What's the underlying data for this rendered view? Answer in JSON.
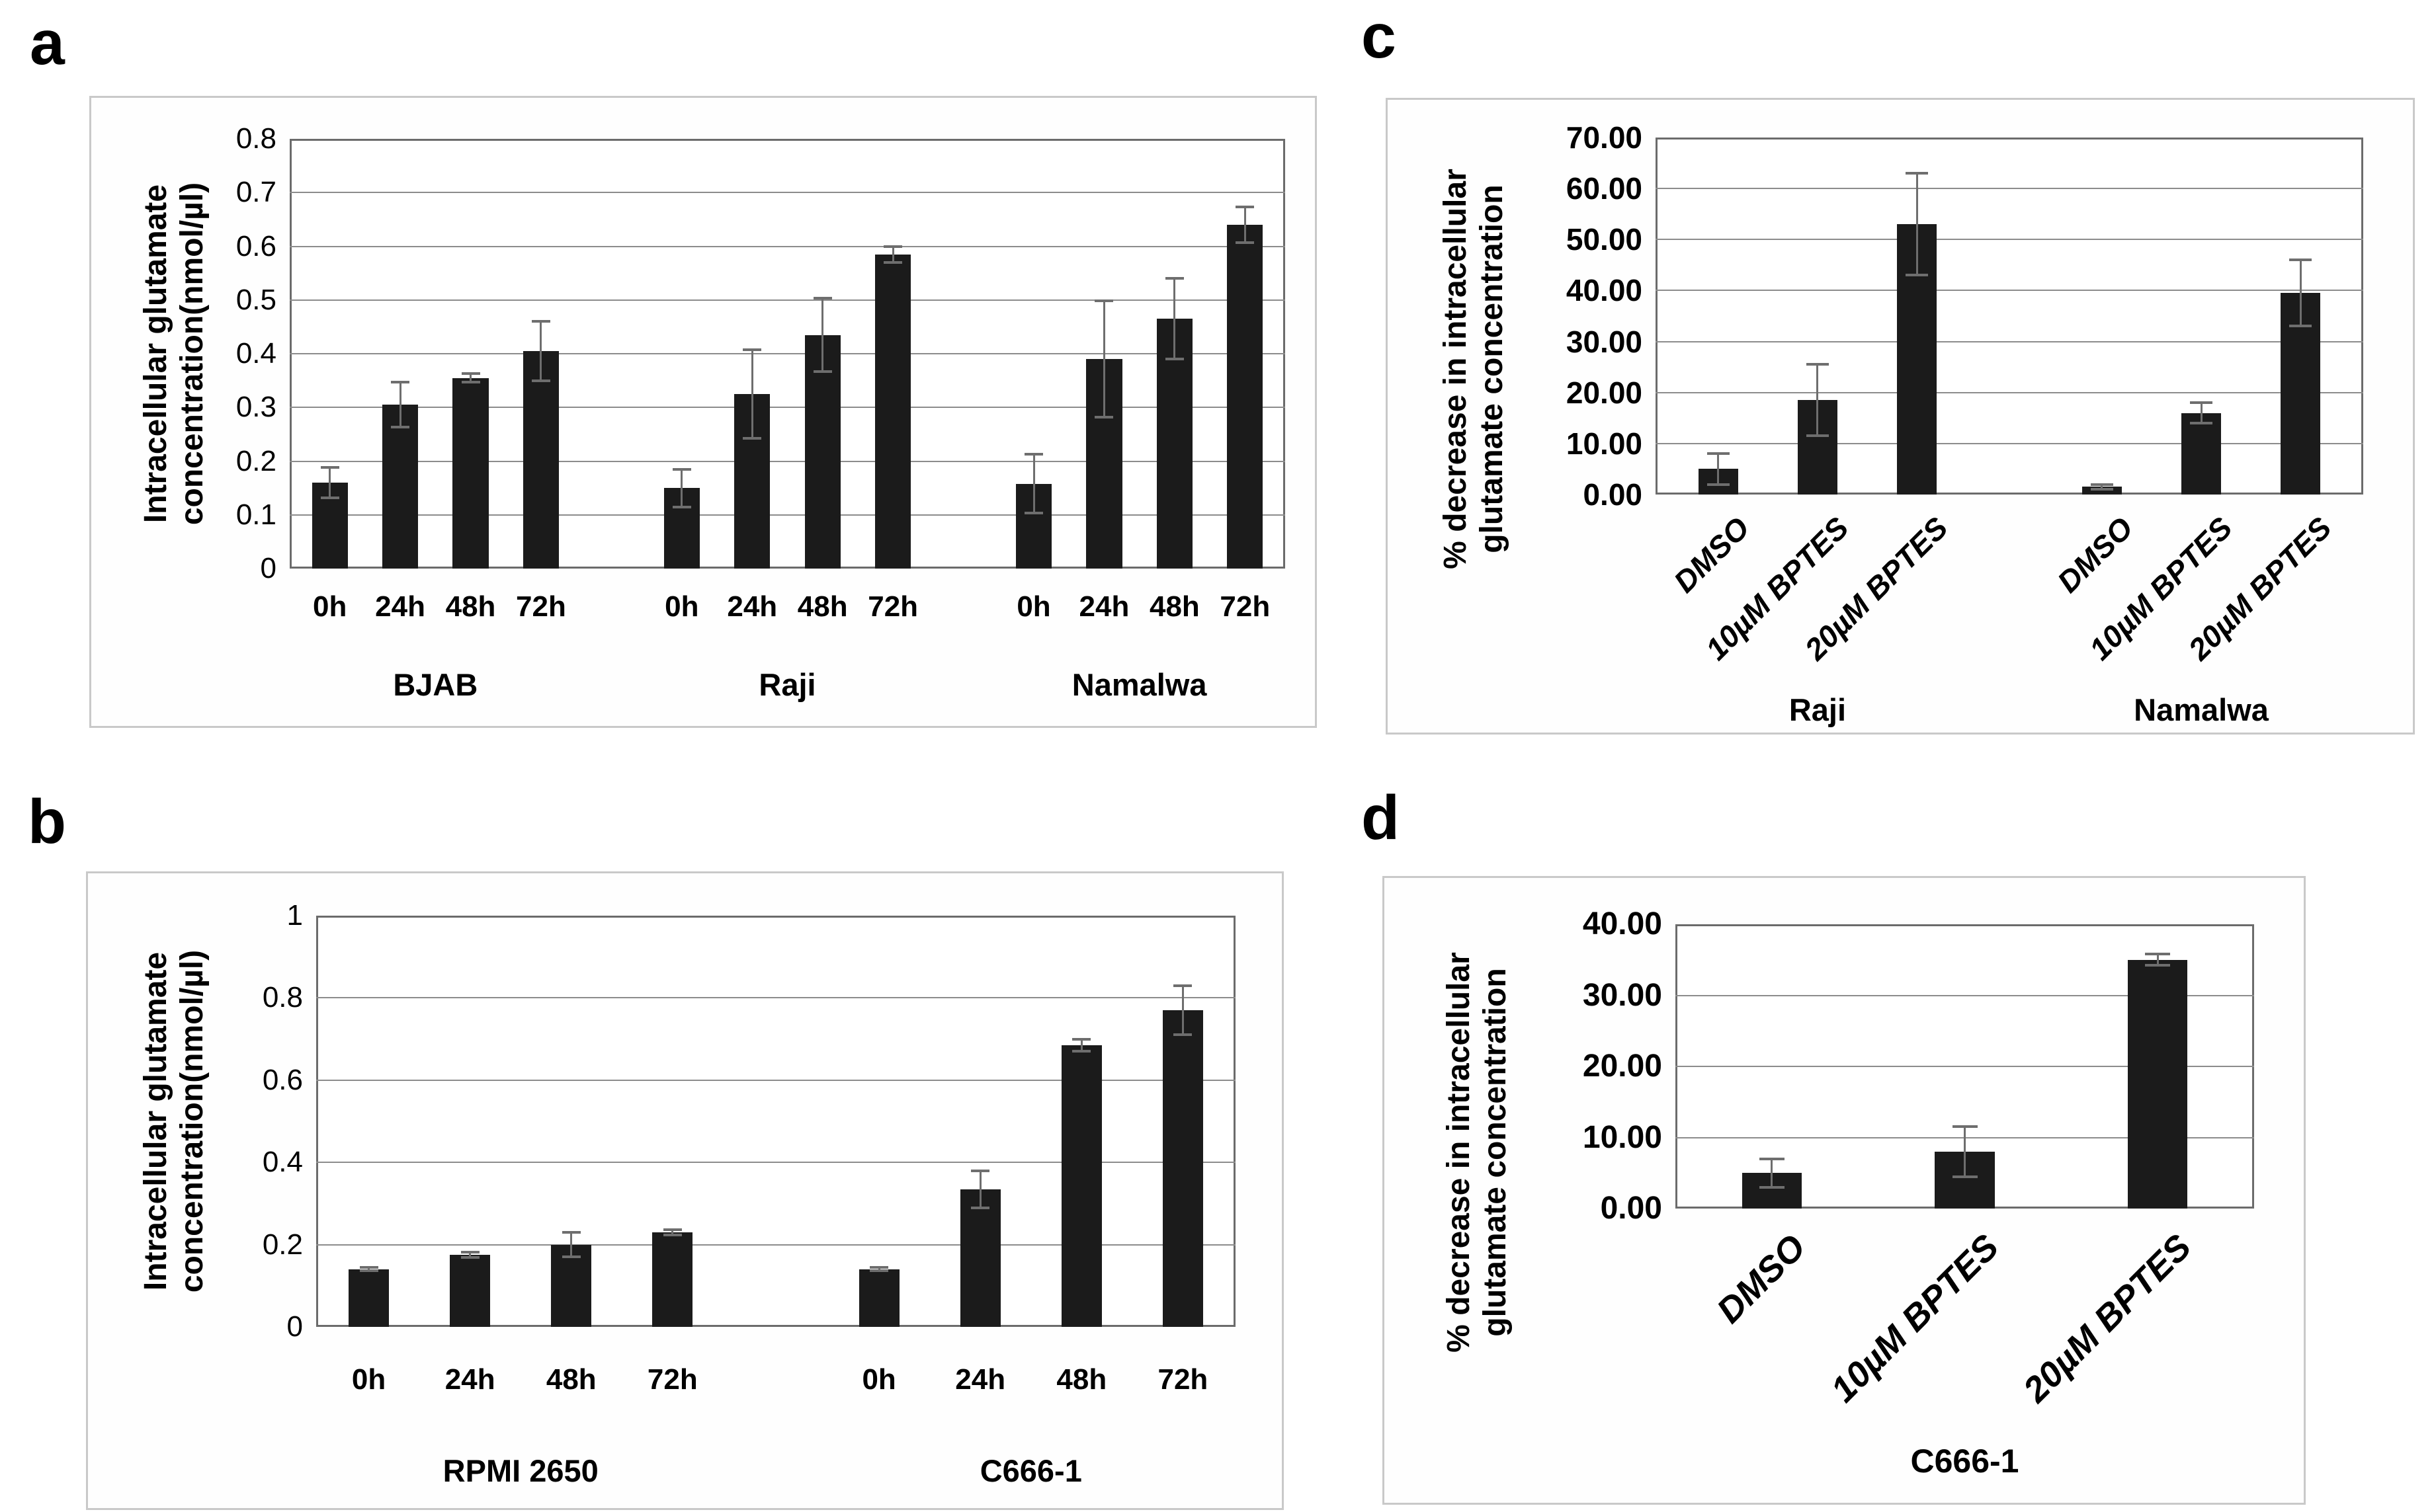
{
  "figure": {
    "background": "#ffffff",
    "colors": {
      "bar": "#1b1b1b",
      "gridline": "#8c8c8c",
      "plot_border": "#6b6b6b",
      "panel_border": "#c9c9c9",
      "error_bar": "#6e6e6e",
      "text": "#000000"
    }
  },
  "chart_data": [
    {
      "panel": "a",
      "type": "bar",
      "ylabel_lines": [
        "Intracellular glutamate",
        "concentration(nmol/µl)"
      ],
      "ylim": [
        0,
        0.8
      ],
      "ytick_labels": [
        "0",
        "0.1",
        "0.2",
        "0.3",
        "0.4",
        "0.5",
        "0.6",
        "0.7",
        "0.8"
      ],
      "grid": true,
      "legend": "none",
      "groups": [
        {
          "label": "BJAB",
          "categories": [
            "0h",
            "24h",
            "48h",
            "72h"
          ],
          "values": [
            0.16,
            0.305,
            0.355,
            0.405
          ],
          "errors": [
            0.028,
            0.042,
            0.008,
            0.055
          ]
        },
        {
          "label": "Raji",
          "categories": [
            "0h",
            "24h",
            "48h",
            "72h"
          ],
          "values": [
            0.15,
            0.325,
            0.435,
            0.585
          ],
          "errors": [
            0.035,
            0.082,
            0.068,
            0.015
          ]
        },
        {
          "label": "Namalwa",
          "categories": [
            "0h",
            "24h",
            "48h",
            "72h"
          ],
          "values": [
            0.158,
            0.39,
            0.465,
            0.64
          ],
          "errors": [
            0.055,
            0.108,
            0.075,
            0.033
          ]
        }
      ]
    },
    {
      "panel": "b",
      "type": "bar",
      "ylabel_lines": [
        "Intracellular glutamate",
        "concentration(nmol/µl)"
      ],
      "ylim": [
        0,
        1
      ],
      "ytick_labels": [
        "0",
        "0.2",
        "0.4",
        "0.6",
        "0.8",
        "1"
      ],
      "grid": true,
      "legend": "none",
      "groups": [
        {
          "label": "RPMI 2650",
          "categories": [
            "0h",
            "24h",
            "48h",
            "72h"
          ],
          "values": [
            0.14,
            0.175,
            0.2,
            0.23
          ],
          "errors": [
            0.004,
            0.006,
            0.03,
            0.006
          ]
        },
        {
          "label": "C666-1",
          "categories": [
            "0h",
            "24h",
            "48h",
            "72h"
          ],
          "values": [
            0.14,
            0.335,
            0.685,
            0.77
          ],
          "errors": [
            0.004,
            0.045,
            0.015,
            0.06
          ]
        }
      ]
    },
    {
      "panel": "c",
      "type": "bar",
      "ylabel_lines": [
        "% decrease in intracellular",
        "glutamate concentration"
      ],
      "ylim": [
        0,
        70
      ],
      "ytick_labels": [
        "0.00",
        "10.00",
        "20.00",
        "30.00",
        "40.00",
        "50.00",
        "60.00",
        "70.00"
      ],
      "grid": true,
      "legend": "none",
      "groups": [
        {
          "label": "Raji",
          "categories": [
            "DMSO",
            "10µM BPTES",
            "20µM BPTES"
          ],
          "values": [
            5.0,
            18.5,
            53.0
          ],
          "errors": [
            3.0,
            7.0,
            10.0
          ]
        },
        {
          "label": "Namalwa",
          "categories": [
            "DMSO",
            "10µM BPTES",
            "20µM BPTES"
          ],
          "values": [
            1.5,
            16.0,
            39.5
          ],
          "errors": [
            0.5,
            2.0,
            6.5
          ]
        }
      ]
    },
    {
      "panel": "d",
      "type": "bar",
      "ylabel_lines": [
        "% decrease in intracellular",
        "glutamate concentration"
      ],
      "ylim": [
        0,
        40
      ],
      "ytick_labels": [
        "0.00",
        "10.00",
        "20.00",
        "30.00",
        "40.00"
      ],
      "grid": true,
      "legend": "none",
      "groups": [
        {
          "label": "C666-1",
          "categories": [
            "DMSO",
            "10µM BPTES",
            "20µM BPTES"
          ],
          "values": [
            5.0,
            8.0,
            35.0
          ],
          "errors": [
            2.0,
            3.5,
            0.8
          ]
        }
      ]
    }
  ]
}
